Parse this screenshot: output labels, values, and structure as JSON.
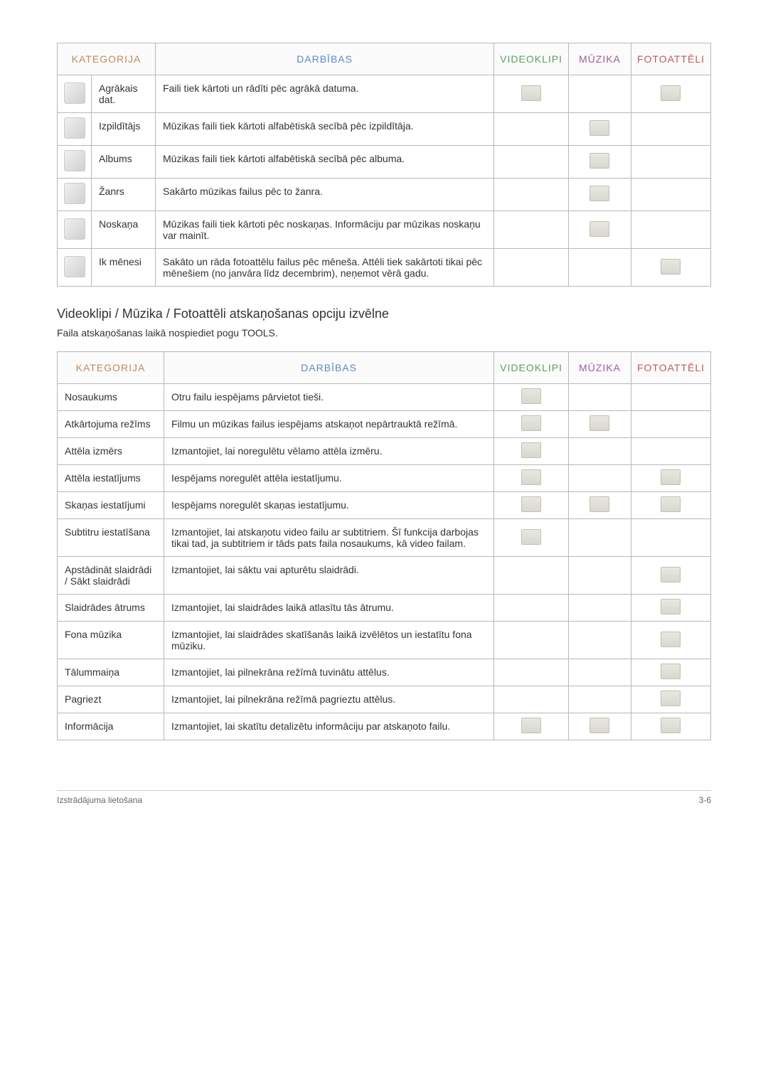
{
  "table1": {
    "headers": {
      "category": "KATEGORIJA",
      "actions": "DARBĪBAS",
      "video": "VIDEOKLIPI",
      "music": "MŪZIKA",
      "photo": "FOTOATTĒLI"
    },
    "header_colors": {
      "category": "#c08a5a",
      "actions": "#5a8ac0",
      "video": "#5aa05a",
      "music": "#a05aa0",
      "photo": "#c05a5a"
    },
    "rows": [
      {
        "category": "Agrākais dat.",
        "action": "Faili tiek kārtoti un rādīti pēc agrākā datuma.",
        "video": true,
        "music": false,
        "photo": true
      },
      {
        "category": "Izpildītājs",
        "action": "Mūzikas faili tiek kārtoti alfabētiskā secībā pēc izpildītāja.",
        "video": false,
        "music": true,
        "photo": false
      },
      {
        "category": "Albums",
        "action": "Mūzikas faili tiek kārtoti alfabētiskā secībā pēc albuma.",
        "video": false,
        "music": true,
        "photo": false
      },
      {
        "category": "Žanrs",
        "action": "Sakārto mūzikas failus pēc to žanra.",
        "video": false,
        "music": true,
        "photo": false
      },
      {
        "category": "Noskaņa",
        "action": "Mūzikas faili tiek kārtoti pēc noskaņas. Informāciju par mūzikas noskaņu var mainīt.",
        "video": false,
        "music": true,
        "photo": false
      },
      {
        "category": "Ik mēnesi",
        "action": "Sakāto un rāda fotoattēlu failus pēc mēneša. Attēli tiek sakārtoti tikai pēc mēnešiem (no janvāra līdz decembrim), neņemot vērā gadu.",
        "video": false,
        "music": false,
        "photo": true
      }
    ]
  },
  "section": {
    "heading": "Videoklipi / Mūzika / Fotoattēli atskaņošanas opciju izvēlne",
    "subtitle": "Faila atskaņošanas laikā nospiediet pogu TOOLS."
  },
  "table2": {
    "headers": {
      "category": "KATEGORIJA",
      "actions": "DARBĪBAS",
      "video": "VIDEOKLIPI",
      "music": "MŪZIKA",
      "photo": "FOTOATTĒLI"
    },
    "rows": [
      {
        "category": "Nosaukums",
        "action": "Otru failu iespējams pārvietot tieši.",
        "video": true,
        "music": false,
        "photo": false
      },
      {
        "category": "Atkārtojuma režīms",
        "action": "Filmu un mūzikas failus iespējams atskaņot nepārtrauktā režīmā.",
        "video": true,
        "music": true,
        "photo": false
      },
      {
        "category": "Attēla izmērs",
        "action": "Izmantojiet, lai noregulētu vēlamo attēla izmēru.",
        "video": true,
        "music": false,
        "photo": false
      },
      {
        "category": "Attēla iestatījums",
        "action": "Iespējams noregulēt attēla iestatījumu.",
        "video": true,
        "music": false,
        "photo": true
      },
      {
        "category": "Skaņas iestatījumi",
        "action": "Iespējams noregulēt skaņas iestatījumu.",
        "video": true,
        "music": true,
        "photo": true
      },
      {
        "category": "Subtitru iestatīšana",
        "action": "Izmantojiet, lai atskaņotu video failu ar subtitriem. Šī funkcija darbojas tikai tad, ja subtitriem ir tāds pats faila nosaukums, kā video failam.",
        "video": true,
        "music": false,
        "photo": false
      },
      {
        "category": "Apstādināt slaidrādi / Sākt slaidrādi",
        "action": "Izmantojiet, lai sāktu vai apturētu slaidrādi.",
        "video": false,
        "music": false,
        "photo": true
      },
      {
        "category": "Slaidrādes ātrums",
        "action": "Izmantojiet, lai slaidrādes laikā atlasītu tās ātrumu.",
        "video": false,
        "music": false,
        "photo": true
      },
      {
        "category": "Fona mūzika",
        "action": "Izmantojiet, lai slaidrādes skatīšanās laikā izvēlētos un iestatītu fona mūziku.",
        "video": false,
        "music": false,
        "photo": true
      },
      {
        "category": "Tālummaiņa",
        "action": "Izmantojiet, lai pilnekrāna režīmā tuvinātu attēlus.",
        "video": false,
        "music": false,
        "photo": true
      },
      {
        "category": "Pagriezt",
        "action": "Izmantojiet, lai pilnekrāna režīmā pagrieztu attēlus.",
        "video": false,
        "music": false,
        "photo": true
      },
      {
        "category": "Informācija",
        "action": "Izmantojiet, lai skatītu detalizētu informāciju par atskaņoto failu.",
        "video": true,
        "music": true,
        "photo": true
      }
    ]
  },
  "footer": {
    "left": "Izstrādājuma lietošana",
    "right": "3-6"
  },
  "colors": {
    "border": "#b8b8b8",
    "text": "#333333",
    "footer_text": "#666666"
  }
}
